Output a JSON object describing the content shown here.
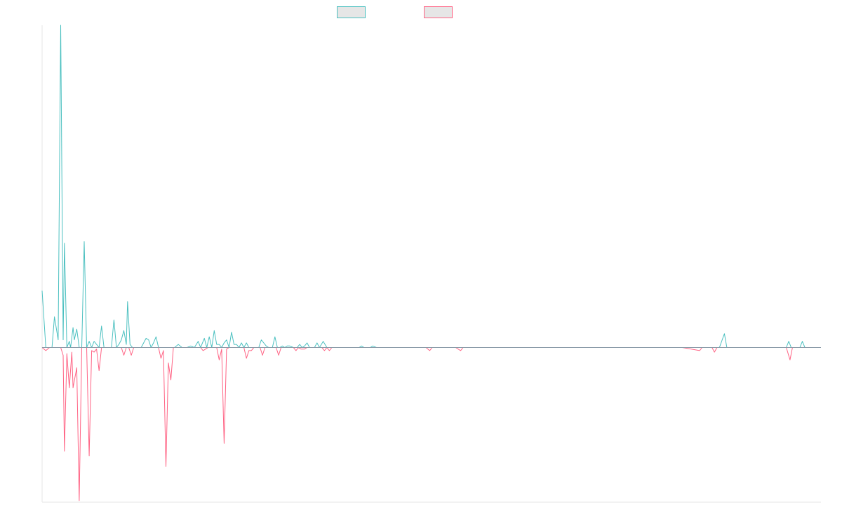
{
  "chart_data": {
    "type": "line",
    "title": "",
    "xlabel": "",
    "ylabel": "",
    "ylim": [
      -1.0,
      2.1
    ],
    "grid": false,
    "legend": {
      "placement": "top-center"
    },
    "series": [
      {
        "color": "#4bc0c0",
        "fill": "#e6e6e6",
        "points": [
          [
            0,
            0.37
          ],
          [
            3,
            0.0
          ],
          [
            8,
            0.0
          ],
          [
            10,
            0.2
          ],
          [
            13,
            0.05
          ],
          [
            15,
            2.1
          ],
          [
            17,
            0.05
          ],
          [
            18,
            0.68
          ],
          [
            20,
            0.0
          ],
          [
            22,
            0.04
          ],
          [
            23,
            0.0
          ],
          [
            25,
            0.13
          ],
          [
            26,
            0.05
          ],
          [
            28,
            0.12
          ],
          [
            30,
            0.0
          ],
          [
            32,
            0.0
          ],
          [
            34,
            0.69
          ],
          [
            36,
            0.0
          ],
          [
            38,
            0.04
          ],
          [
            40,
            0.0
          ],
          [
            42,
            0.04
          ],
          [
            44,
            0.02
          ],
          [
            46,
            0.0
          ],
          [
            48,
            0.14
          ],
          [
            50,
            0.0
          ],
          [
            52,
            0.0
          ],
          [
            56,
            0.0
          ],
          [
            58,
            0.18
          ],
          [
            60,
            0.0
          ],
          [
            62,
            0.02
          ],
          [
            64,
            0.05
          ],
          [
            66,
            0.11
          ],
          [
            68,
            0.02
          ],
          [
            69,
            0.3
          ],
          [
            71,
            0.02
          ],
          [
            73,
            0.0
          ],
          [
            76,
            0.0
          ],
          [
            80,
            0.0
          ],
          [
            84,
            0.06
          ],
          [
            86,
            0.05
          ],
          [
            88,
            0.0
          ],
          [
            90,
            0.03
          ],
          [
            92,
            0.07
          ],
          [
            94,
            0.0
          ],
          [
            100,
            0.0
          ],
          [
            107,
            0.0
          ],
          [
            110,
            0.02
          ],
          [
            113,
            0.0
          ],
          [
            117,
            0.0
          ],
          [
            120,
            0.01
          ],
          [
            123,
            0.0
          ],
          [
            126,
            0.04
          ],
          [
            128,
            0.0
          ],
          [
            131,
            0.06
          ],
          [
            133,
            0.0
          ],
          [
            135,
            0.07
          ],
          [
            137,
            0.0
          ],
          [
            139,
            0.11
          ],
          [
            141,
            0.02
          ],
          [
            143,
            0.02
          ],
          [
            145,
            0.0
          ],
          [
            147,
            0.03
          ],
          [
            149,
            0.05
          ],
          [
            151,
            0.0
          ],
          [
            153,
            0.1
          ],
          [
            155,
            0.02
          ],
          [
            157,
            0.02
          ],
          [
            159,
            0.0
          ],
          [
            161,
            0.03
          ],
          [
            163,
            0.0
          ],
          [
            165,
            0.03
          ],
          [
            167,
            0.0
          ],
          [
            170,
            0.0
          ],
          [
            175,
            0.0
          ],
          [
            177,
            0.05
          ],
          [
            179,
            0.03
          ],
          [
            181,
            0.01
          ],
          [
            183,
            0.0
          ],
          [
            186,
            0.0
          ],
          [
            188,
            0.07
          ],
          [
            190,
            0.0
          ],
          [
            192,
            0.0
          ],
          [
            194,
            0.01
          ],
          [
            196,
            0.0
          ],
          [
            198,
            0.01
          ],
          [
            200,
            0.01
          ],
          [
            203,
            0.0
          ],
          [
            206,
            0.0
          ],
          [
            208,
            0.02
          ],
          [
            210,
            0.0
          ],
          [
            212,
            0.01
          ],
          [
            214,
            0.03
          ],
          [
            216,
            0.0
          ],
          [
            218,
            0.0
          ],
          [
            220,
            0.0
          ],
          [
            222,
            0.03
          ],
          [
            224,
            0.0
          ],
          [
            227,
            0.04
          ],
          [
            230,
            0.0
          ],
          [
            240,
            0.0
          ],
          [
            256,
            0.0
          ],
          [
            258,
            0.01
          ],
          [
            260,
            0.0
          ],
          [
            265,
            0.0
          ],
          [
            267,
            0.01
          ],
          [
            270,
            0.0
          ],
          [
            290,
            0.0
          ],
          [
            304,
            0.0
          ],
          [
            322,
            0.0
          ],
          [
            334,
            0.0
          ],
          [
            338,
            0.0
          ],
          [
            362,
            0.0
          ],
          [
            385,
            0.0
          ],
          [
            390,
            0.0
          ],
          [
            409,
            0.0
          ],
          [
            416,
            0.0
          ],
          [
            432,
            0.0
          ],
          [
            442,
            0.0
          ],
          [
            445,
            0.0
          ],
          [
            451,
            0.0
          ],
          [
            460,
            0.0
          ],
          [
            463,
            0.0
          ],
          [
            488,
            0.0
          ],
          [
            496,
            0.0
          ],
          [
            518,
            0.0
          ],
          [
            533,
            0.0
          ],
          [
            547,
            0.0
          ],
          [
            551,
            0.09
          ],
          [
            553,
            0.0
          ],
          [
            590,
            0.0
          ],
          [
            601,
            0.0
          ],
          [
            603,
            0.04
          ],
          [
            605,
            0.0
          ],
          [
            612,
            0.0
          ],
          [
            614,
            0.04
          ],
          [
            616,
            0.0
          ],
          [
            629,
            0.0
          ]
        ]
      },
      {
        "color": "#ff6384",
        "fill": "#e6e6e6",
        "points": [
          [
            0,
            0.0
          ],
          [
            3,
            -0.02
          ],
          [
            6,
            0.0
          ],
          [
            10,
            0.0
          ],
          [
            15,
            0.0
          ],
          [
            17,
            -0.05
          ],
          [
            18,
            -0.67
          ],
          [
            20,
            -0.04
          ],
          [
            22,
            -0.26
          ],
          [
            24,
            -0.03
          ],
          [
            25,
            -0.26
          ],
          [
            28,
            -0.13
          ],
          [
            30,
            -0.99
          ],
          [
            32,
            -0.0
          ],
          [
            34,
            -0.0
          ],
          [
            36,
            -0.0
          ],
          [
            38,
            -0.7
          ],
          [
            40,
            -0.02
          ],
          [
            42,
            -0.03
          ],
          [
            44,
            -0.01
          ],
          [
            46,
            -0.15
          ],
          [
            48,
            0.0
          ],
          [
            52,
            0.0
          ],
          [
            56,
            0.0
          ],
          [
            60,
            0.0
          ],
          [
            64,
            0.0
          ],
          [
            66,
            -0.05
          ],
          [
            68,
            0.0
          ],
          [
            70,
            0.0
          ],
          [
            72,
            -0.05
          ],
          [
            74,
            0.0
          ],
          [
            80,
            0.0
          ],
          [
            94,
            0.0
          ],
          [
            96,
            -0.07
          ],
          [
            98,
            -0.02
          ],
          [
            100,
            -0.77
          ],
          [
            102,
            -0.1
          ],
          [
            104,
            -0.21
          ],
          [
            106,
            0.0
          ],
          [
            118,
            0.0
          ],
          [
            124,
            0.0
          ],
          [
            128,
            0.0
          ],
          [
            130,
            -0.02
          ],
          [
            134,
            0.0
          ],
          [
            141,
            0.0
          ],
          [
            143,
            -0.08
          ],
          [
            145,
            -0.01
          ],
          [
            147,
            -0.62
          ],
          [
            149,
            -0.01
          ],
          [
            151,
            0.0
          ],
          [
            159,
            0.0
          ],
          [
            163,
            0.0
          ],
          [
            165,
            -0.07
          ],
          [
            167,
            -0.02
          ],
          [
            169,
            -0.02
          ],
          [
            171,
            0.0
          ],
          [
            173,
            0.0
          ],
          [
            176,
            -0.0
          ],
          [
            178,
            -0.05
          ],
          [
            180,
            0.0
          ],
          [
            189,
            0.0
          ],
          [
            191,
            -0.05
          ],
          [
            193,
            0.0
          ],
          [
            195,
            0.0
          ],
          [
            197,
            0.0
          ],
          [
            200,
            0.0
          ],
          [
            203,
            0.0
          ],
          [
            205,
            -0.02
          ],
          [
            207,
            0.0
          ],
          [
            209,
            -0.01
          ],
          [
            212,
            -0.01
          ],
          [
            214,
            0.0
          ],
          [
            220,
            0.0
          ],
          [
            226,
            0.0
          ],
          [
            228,
            -0.02
          ],
          [
            230,
            0.0
          ],
          [
            232,
            -0.02
          ],
          [
            234,
            0.0
          ],
          [
            238,
            0.0
          ],
          [
            242,
            0.0
          ],
          [
            247,
            0.0
          ],
          [
            250,
            0.0
          ],
          [
            252,
            0.0
          ],
          [
            255,
            0.0
          ],
          [
            260,
            0.0
          ],
          [
            274,
            0.0
          ],
          [
            286,
            0.0
          ],
          [
            296,
            0.0
          ],
          [
            299,
            0.0
          ],
          [
            301,
            0.0
          ],
          [
            304,
            0.0
          ],
          [
            310,
            0.0
          ],
          [
            313,
            -0.02
          ],
          [
            315,
            0.0
          ],
          [
            334,
            0.0
          ],
          [
            338,
            -0.02
          ],
          [
            340,
            0.0
          ],
          [
            350,
            0.0
          ],
          [
            367,
            0.0
          ],
          [
            378,
            0.0
          ],
          [
            385,
            0.0
          ],
          [
            388,
            0.0
          ],
          [
            392,
            0.0
          ],
          [
            412,
            0.0
          ],
          [
            427,
            0.0
          ],
          [
            432,
            0.0
          ],
          [
            442,
            0.0
          ],
          [
            448,
            0.0
          ],
          [
            461,
            0.0
          ],
          [
            469,
            0.0
          ],
          [
            476,
            0.0
          ],
          [
            488,
            0.0
          ],
          [
            497,
            0.0
          ],
          [
            505,
            0.0
          ],
          [
            517,
            0.0
          ],
          [
            531,
            -0.02
          ],
          [
            533,
            0.0
          ],
          [
            541,
            0.0
          ],
          [
            543,
            -0.03
          ],
          [
            545,
            0.0
          ],
          [
            551,
            0.0
          ],
          [
            566,
            0.0
          ],
          [
            580,
            0.0
          ],
          [
            584,
            0.0
          ],
          [
            587,
            0.0
          ],
          [
            590,
            0.0
          ],
          [
            601,
            0.0
          ],
          [
            604,
            -0.08
          ],
          [
            606,
            0.0
          ],
          [
            629,
            0.0
          ]
        ]
      }
    ]
  }
}
